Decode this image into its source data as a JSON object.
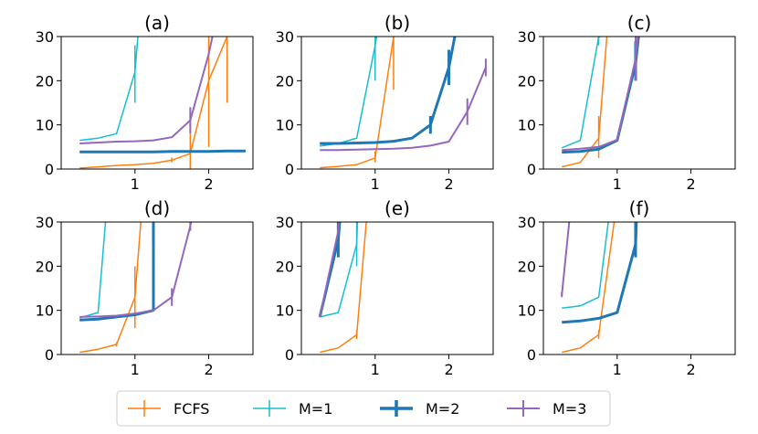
{
  "chart_data": [
    {
      "type": "line",
      "title": "(a)",
      "xlim": [
        0,
        2.6
      ],
      "ylim": [
        0,
        30
      ],
      "xticks": [
        1,
        2
      ],
      "yticks": [
        0,
        10,
        20,
        30
      ],
      "series": [
        {
          "name": "FCFS",
          "x": [
            0.25,
            0.5,
            0.75,
            1.0,
            1.25,
            1.5,
            1.75,
            2.0,
            2.25
          ],
          "y": [
            0.2,
            0.5,
            0.8,
            1.0,
            1.3,
            2.0,
            3.5,
            20,
            30
          ],
          "err": [
            {
              "x": 1.5,
              "y": 2.0,
              "lo": 1.5,
              "hi": 2.6
            },
            {
              "x": 1.75,
              "y": 3.5,
              "lo": 0,
              "hi": 8
            },
            {
              "x": 2.0,
              "y": 20,
              "lo": 5,
              "hi": 30
            },
            {
              "x": 2.25,
              "y": 30,
              "lo": 15,
              "hi": 30
            }
          ]
        },
        {
          "name": "M=1",
          "x": [
            0.25,
            0.5,
            0.75,
            1.0,
            1.04
          ],
          "y": [
            6.5,
            7.0,
            8.0,
            22,
            30
          ],
          "err": [
            {
              "x": 1.0,
              "y": 22,
              "lo": 15,
              "hi": 28
            }
          ]
        },
        {
          "name": "M=2",
          "x": [
            0.25,
            0.5,
            0.75,
            1.0,
            1.25,
            1.5,
            1.75,
            2.0,
            2.25,
            2.5
          ],
          "y": [
            3.9,
            3.9,
            3.9,
            3.9,
            3.9,
            4.0,
            4.0,
            4.0,
            4.1,
            4.1
          ],
          "err": []
        },
        {
          "name": "M=3",
          "x": [
            0.25,
            0.5,
            0.75,
            1.0,
            1.25,
            1.5,
            1.75,
            2.0,
            2.05
          ],
          "y": [
            5.8,
            6.0,
            6.2,
            6.3,
            6.5,
            7.2,
            11,
            26,
            30
          ],
          "err": [
            {
              "x": 1.75,
              "y": 11,
              "lo": 8,
              "hi": 14
            }
          ]
        }
      ]
    },
    {
      "type": "line",
      "title": "(b)",
      "xlim": [
        0,
        2.6
      ],
      "ylim": [
        0,
        30
      ],
      "xticks": [
        1,
        2
      ],
      "yticks": [
        0,
        10,
        20,
        30
      ],
      "series": [
        {
          "name": "FCFS",
          "x": [
            0.25,
            0.5,
            0.75,
            1.0,
            1.25
          ],
          "y": [
            0.3,
            0.6,
            1.0,
            2.5,
            30
          ],
          "err": [
            {
              "x": 1.0,
              "y": 2.5,
              "lo": 1.5,
              "hi": 4.0
            },
            {
              "x": 1.25,
              "y": 30,
              "lo": 18,
              "hi": 30
            }
          ]
        },
        {
          "name": "M=1",
          "x": [
            0.25,
            0.5,
            0.75,
            1.0,
            1.02
          ],
          "y": [
            5.2,
            5.8,
            7.0,
            28,
            30
          ],
          "err": [
            {
              "x": 1.0,
              "y": 28,
              "lo": 20,
              "hi": 30
            }
          ]
        },
        {
          "name": "M=2",
          "x": [
            0.25,
            0.5,
            0.75,
            1.0,
            1.25,
            1.5,
            1.75,
            2.0,
            2.08
          ],
          "y": [
            5.8,
            5.8,
            5.9,
            6.0,
            6.3,
            7.0,
            10,
            23,
            30
          ],
          "err": [
            {
              "x": 1.75,
              "y": 10,
              "lo": 8,
              "hi": 12
            },
            {
              "x": 2.0,
              "y": 23,
              "lo": 19,
              "hi": 27
            }
          ]
        },
        {
          "name": "M=3",
          "x": [
            0.25,
            0.5,
            0.75,
            1.0,
            1.25,
            1.5,
            1.75,
            2.0,
            2.25,
            2.5
          ],
          "y": [
            4.3,
            4.3,
            4.4,
            4.5,
            4.6,
            4.8,
            5.3,
            6.2,
            13,
            23
          ],
          "err": [
            {
              "x": 2.25,
              "y": 13,
              "lo": 10,
              "hi": 16
            },
            {
              "x": 2.5,
              "y": 23,
              "lo": 21,
              "hi": 25
            }
          ]
        }
      ]
    },
    {
      "type": "line",
      "title": "(c)",
      "xlim": [
        0,
        2.6
      ],
      "ylim": [
        0,
        30
      ],
      "xticks": [
        1,
        2
      ],
      "yticks": [
        0,
        10,
        20,
        30
      ],
      "series": [
        {
          "name": "FCFS",
          "x": [
            0.25,
            0.5,
            0.75,
            0.86
          ],
          "y": [
            0.5,
            1.5,
            7.0,
            30
          ],
          "err": [
            {
              "x": 0.75,
              "y": 7.0,
              "lo": 2.5,
              "hi": 12
            }
          ]
        },
        {
          "name": "M=1",
          "x": [
            0.25,
            0.5,
            0.75,
            0.78
          ],
          "y": [
            4.8,
            6.5,
            30,
            30
          ],
          "err": [
            {
              "x": 0.75,
              "y": 30,
              "lo": 28,
              "hi": 30
            }
          ]
        },
        {
          "name": "M=2",
          "x": [
            0.25,
            0.5,
            0.75,
            1.0,
            1.25,
            1.29
          ],
          "y": [
            3.8,
            4.0,
            4.5,
            6.5,
            24,
            30
          ],
          "err": [
            {
              "x": 1.25,
              "y": 24,
              "lo": 20,
              "hi": 29
            }
          ]
        },
        {
          "name": "M=3",
          "x": [
            0.25,
            0.5,
            0.75,
            1.0,
            1.25,
            1.28
          ],
          "y": [
            4.3,
            4.6,
            5.0,
            6.6,
            25,
            30
          ],
          "err": [
            {
              "x": 1.25,
              "y": 25,
              "lo": 20,
              "hi": 30
            }
          ]
        }
      ]
    },
    {
      "type": "line",
      "title": "(d)",
      "xlim": [
        0,
        2.6
      ],
      "ylim": [
        0,
        30
      ],
      "xticks": [
        1,
        2
      ],
      "yticks": [
        0,
        10,
        20,
        30
      ],
      "series": [
        {
          "name": "FCFS",
          "x": [
            0.25,
            0.5,
            0.75,
            1.0,
            1.08
          ],
          "y": [
            0.5,
            1.2,
            2.3,
            13,
            30
          ],
          "err": [
            {
              "x": 0.75,
              "y": 2.3,
              "lo": 1.8,
              "hi": 2.8
            },
            {
              "x": 1.0,
              "y": 13,
              "lo": 6,
              "hi": 20
            }
          ]
        },
        {
          "name": "M=1",
          "x": [
            0.25,
            0.5,
            0.6
          ],
          "y": [
            8.3,
            9.5,
            30
          ],
          "err": []
        },
        {
          "name": "M=2",
          "x": [
            0.25,
            0.5,
            0.75,
            1.0,
            1.25,
            1.25
          ],
          "y": [
            7.8,
            8.0,
            8.5,
            9.0,
            10,
            30
          ],
          "err": [
            {
              "x": 1.25,
              "y": 30,
              "lo": 25,
              "hi": 30
            }
          ]
        },
        {
          "name": "M=3",
          "x": [
            0.25,
            0.5,
            0.75,
            1.0,
            1.25,
            1.5,
            1.75,
            1.76
          ],
          "y": [
            8.5,
            8.6,
            8.8,
            9.3,
            10,
            13,
            29,
            30
          ],
          "err": [
            {
              "x": 1.5,
              "y": 13,
              "lo": 11,
              "hi": 15
            },
            {
              "x": 1.75,
              "y": 29,
              "lo": 28,
              "hi": 30
            }
          ]
        }
      ]
    },
    {
      "type": "line",
      "title": "(e)",
      "xlim": [
        0,
        2.6
      ],
      "ylim": [
        0,
        30
      ],
      "xticks": [
        1,
        2
      ],
      "yticks": [
        0,
        10,
        20,
        30
      ],
      "series": [
        {
          "name": "FCFS",
          "x": [
            0.25,
            0.5,
            0.75,
            0.88
          ],
          "y": [
            0.5,
            1.5,
            4.5,
            30
          ],
          "err": [
            {
              "x": 0.75,
              "y": 4.5,
              "lo": 3.5,
              "hi": 5.5
            }
          ]
        },
        {
          "name": "M=1",
          "x": [
            0.25,
            0.5,
            0.75,
            0.76
          ],
          "y": [
            8.5,
            9.5,
            25,
            30
          ],
          "err": [
            {
              "x": 0.75,
              "y": 25,
              "lo": 20,
              "hi": 30
            }
          ]
        },
        {
          "name": "M=2",
          "x": [
            0.25,
            0.5,
            0.52
          ],
          "y": [
            8.5,
            26,
            30
          ],
          "err": [
            {
              "x": 0.5,
              "y": 26,
              "lo": 22,
              "hi": 30
            }
          ]
        },
        {
          "name": "M=3",
          "x": [
            0.25,
            0.5,
            0.51
          ],
          "y": [
            8.5,
            28,
            30
          ],
          "err": []
        }
      ]
    },
    {
      "type": "line",
      "title": "(f)",
      "xlim": [
        0,
        2.6
      ],
      "ylim": [
        0,
        30
      ],
      "xticks": [
        1,
        2
      ],
      "yticks": [
        0,
        10,
        20,
        30
      ],
      "series": [
        {
          "name": "FCFS",
          "x": [
            0.25,
            0.5,
            0.75,
            0.96
          ],
          "y": [
            0.5,
            1.5,
            4.5,
            30
          ],
          "err": [
            {
              "x": 0.75,
              "y": 4.5,
              "lo": 3.5,
              "hi": 5.5
            }
          ]
        },
        {
          "name": "M=1",
          "x": [
            0.25,
            0.5,
            0.75,
            0.88
          ],
          "y": [
            10.5,
            11,
            13,
            30
          ],
          "err": []
        },
        {
          "name": "M=2",
          "x": [
            0.25,
            0.5,
            0.75,
            1.0,
            1.25,
            1.26
          ],
          "y": [
            7.3,
            7.6,
            8.2,
            9.5,
            25,
            30
          ],
          "err": [
            {
              "x": 1.25,
              "y": 25,
              "lo": 22,
              "hi": 30
            }
          ]
        },
        {
          "name": "M=3",
          "x": [
            0.25,
            0.35
          ],
          "y": [
            13.5,
            30
          ],
          "err": [
            {
              "x": 0.25,
              "y": 13.5,
              "lo": 13,
              "hi": 14
            }
          ]
        }
      ]
    }
  ],
  "legend": {
    "entries": [
      {
        "label": "FCFS",
        "color": "#ff7f0e",
        "width": 1.5
      },
      {
        "label": "M=1",
        "color": "#17becf",
        "width": 1.5
      },
      {
        "label": "M=2",
        "color": "#1f77b4",
        "width": 3.5
      },
      {
        "label": "M=3",
        "color": "#9467bd",
        "width": 2.0
      }
    ]
  },
  "colors": {
    "FCFS": "#ff7f0e",
    "M=1": "#17becf",
    "M=2": "#1f77b4",
    "M=3": "#9467bd"
  }
}
